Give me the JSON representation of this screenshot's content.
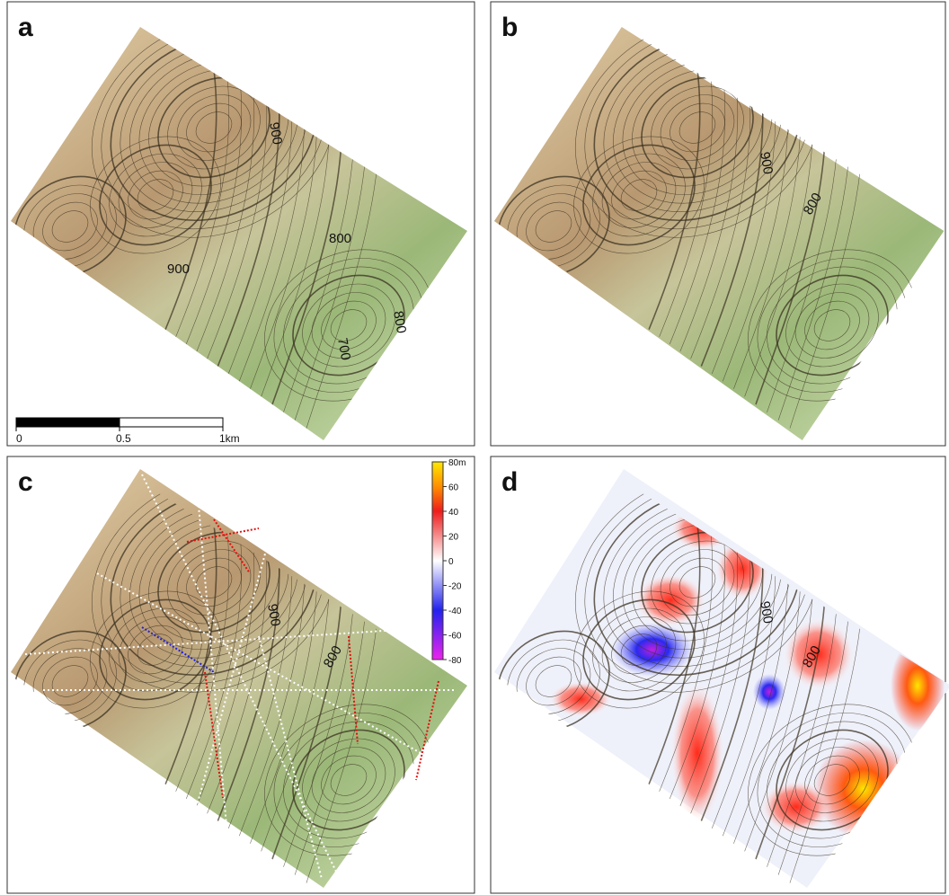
{
  "panels": [
    {
      "label": "a",
      "contour_labels": [
        "900",
        "800",
        "900",
        "800",
        "700"
      ]
    },
    {
      "label": "b",
      "contour_labels": [
        "900",
        "800"
      ]
    },
    {
      "label": "c",
      "contour_labels": [
        "900",
        "800"
      ]
    },
    {
      "label": "d",
      "contour_labels": [
        "900",
        "800"
      ]
    }
  ],
  "scale_bar": {
    "ticks": [
      0,
      0.5,
      {
        "value": 1,
        "label": "1km"
      }
    ]
  },
  "colorbar": {
    "ticks": [
      {
        "value": 80,
        "label": "80m"
      },
      60,
      40,
      20,
      0,
      -20,
      -40,
      -60,
      -80
    ]
  }
}
